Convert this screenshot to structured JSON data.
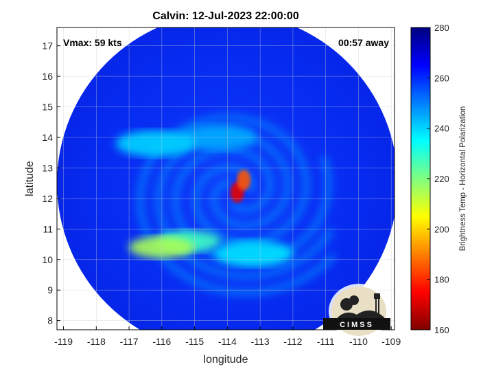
{
  "chart_data": {
    "type": "heatmap",
    "title": "Calvin: 12-Jul-2023 22:00:00",
    "xlabel": "longitude",
    "ylabel": "latitude",
    "xlim": [
      -119.2,
      -108.9
    ],
    "ylim": [
      7.7,
      17.6
    ],
    "x_ticks": [
      -119,
      -118,
      -117,
      -116,
      -115,
      -114,
      -113,
      -112,
      -111,
      -110,
      -109
    ],
    "y_ticks": [
      8,
      9,
      10,
      11,
      12,
      13,
      14,
      15,
      16,
      17
    ],
    "grid": true,
    "annotation_left": "Vmax: 59 kts",
    "annotation_right": "00:57 away",
    "colorbar": {
      "label": "Brightness Temp - Horizontal Polarization",
      "range": [
        160,
        280
      ],
      "ticks": [
        160,
        180,
        200,
        220,
        240,
        260,
        280
      ],
      "colormap": "jet"
    },
    "background_value": 264,
    "swath": {
      "center_lon": -114.0,
      "center_lat": 12.5,
      "radius_deg": 5.2
    },
    "features": [
      {
        "name": "warm core",
        "lon": -113.7,
        "lat": 12.2,
        "value": 172
      },
      {
        "name": "inner eyewall",
        "lon": -113.5,
        "lat": 12.6,
        "value": 185
      },
      {
        "name": "southern band",
        "lon": -115.2,
        "lat": 10.6,
        "value": 228
      },
      {
        "name": "southwest band",
        "lon": -116.0,
        "lat": 10.4,
        "value": 215
      },
      {
        "name": "band extension",
        "lon": -113.2,
        "lat": 10.2,
        "value": 238
      },
      {
        "name": "north spiral",
        "lon": -114.3,
        "lat": 14.0,
        "value": 245
      },
      {
        "name": "west spiral",
        "lon": -116.2,
        "lat": 13.8,
        "value": 240
      }
    ]
  },
  "logo": {
    "text": "CIMSS"
  },
  "colors": {
    "background_field": "#0a48e8",
    "frame": "#000000"
  }
}
